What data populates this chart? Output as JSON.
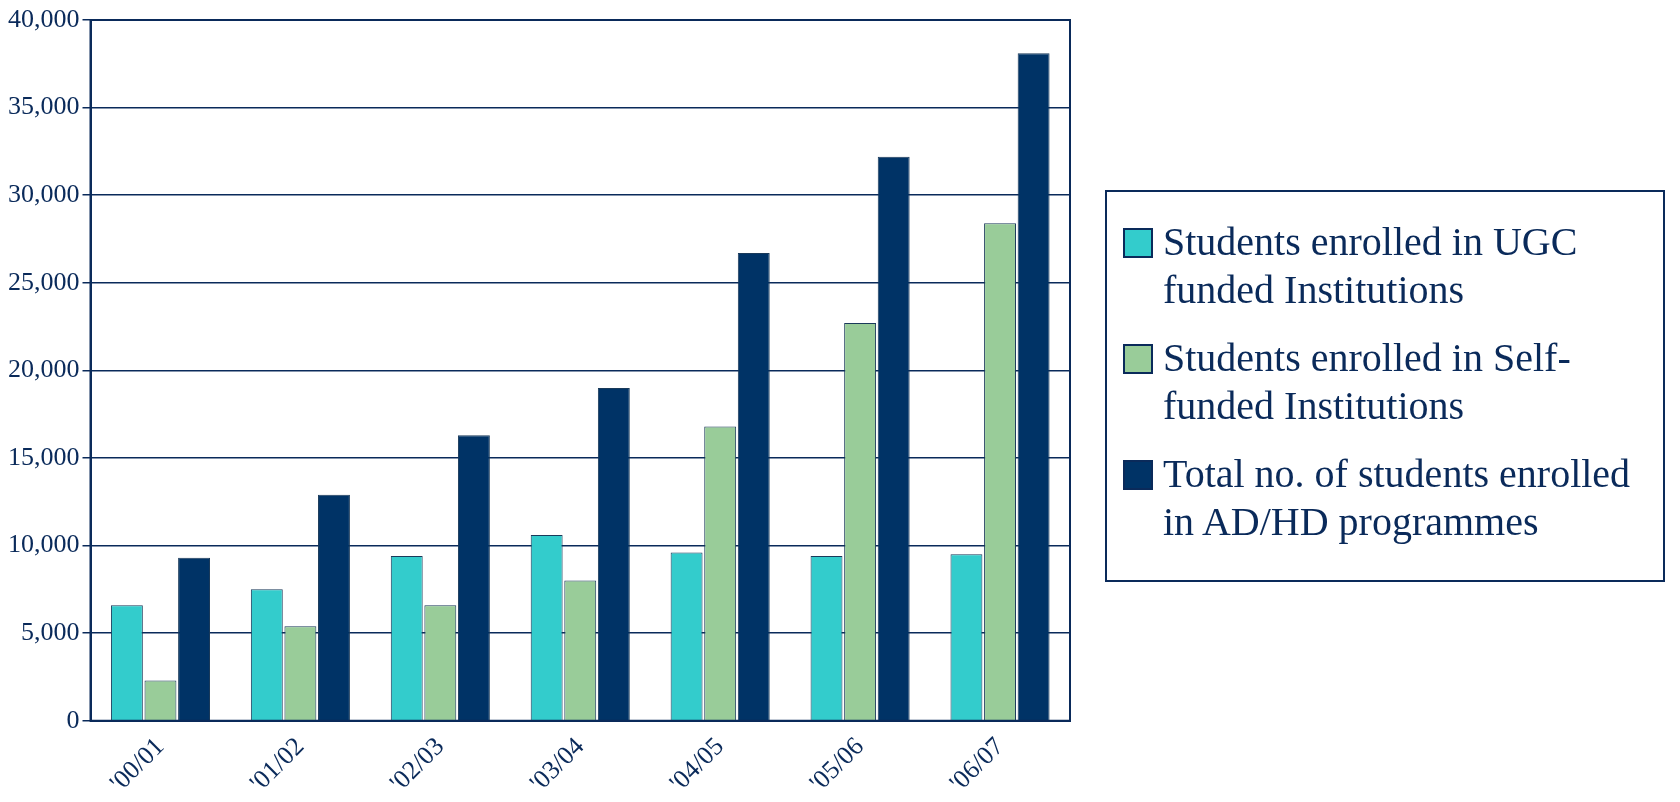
{
  "chart_data": {
    "type": "bar",
    "categories": [
      "'00/01",
      "'01/02",
      "'02/03",
      "'03/04",
      "'04/05",
      "'05/06",
      "'06/07"
    ],
    "series": [
      {
        "name": "Students enrolled in UGC funded Institutions",
        "color": "#33cccc",
        "values": [
          6600,
          7500,
          9400,
          10600,
          9600,
          9400,
          9500
        ]
      },
      {
        "name": "Students enrolled in Self-funded Institutions",
        "color": "#99cc99",
        "values": [
          2300,
          5400,
          6600,
          8000,
          16800,
          22700,
          28400
        ]
      },
      {
        "name": "Total no. of students enrolled in AD/HD programmes",
        "color": "#003366",
        "values": [
          9300,
          12900,
          16300,
          19000,
          26700,
          32200,
          38100
        ]
      }
    ],
    "ylim": [
      0,
      40000
    ],
    "yticks": [
      {
        "value": 0,
        "label": "0"
      },
      {
        "value": 5000,
        "label": "5,000"
      },
      {
        "value": 10000,
        "label": "10,000"
      },
      {
        "value": 15000,
        "label": "15,000"
      },
      {
        "value": 20000,
        "label": "20,000"
      },
      {
        "value": 25000,
        "label": "25,000"
      },
      {
        "value": 30000,
        "label": "30,000"
      },
      {
        "value": 35000,
        "label": "35,000"
      },
      {
        "value": 40000,
        "label": "40,000"
      }
    ],
    "grid": "y",
    "legend": "right"
  }
}
